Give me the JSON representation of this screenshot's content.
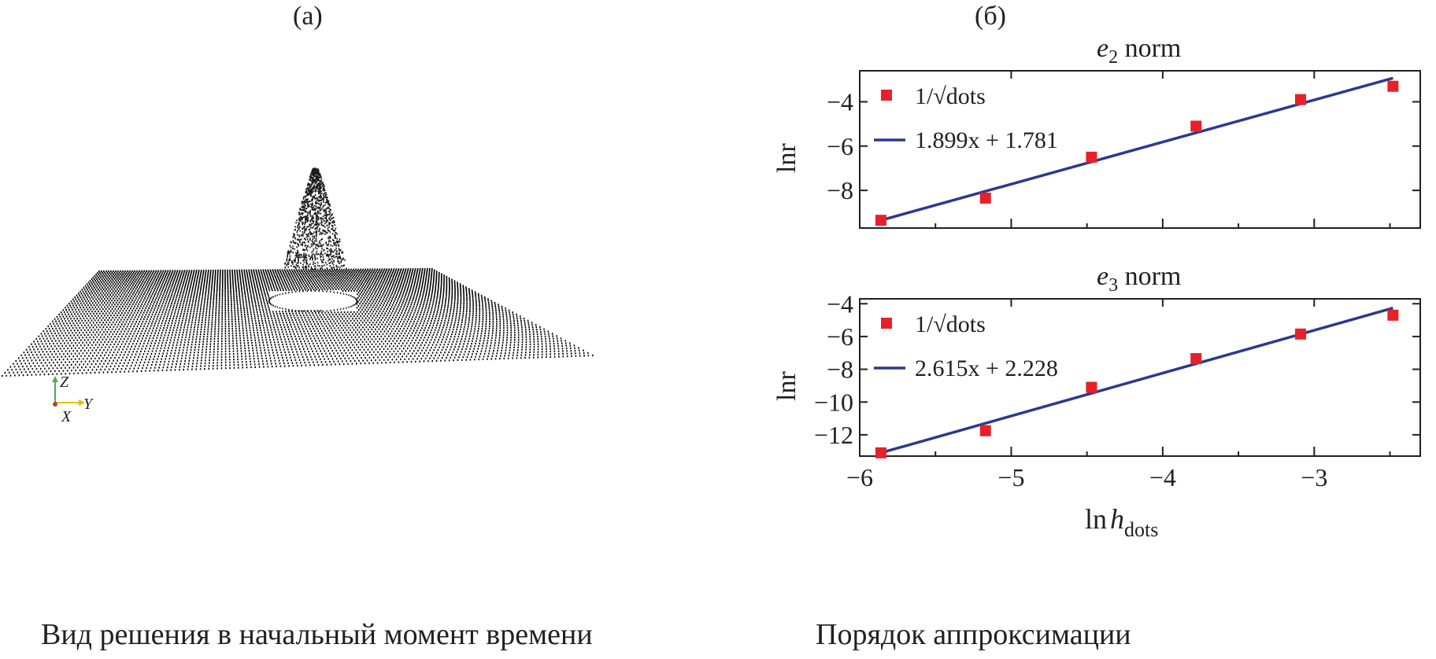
{
  "panel_a": {
    "label": "(а)",
    "caption": "Вид решения в начальный момент времени",
    "axes_triad": {
      "z": "Z",
      "y": "Y",
      "x": "X"
    }
  },
  "panel_b": {
    "label": "(б)",
    "caption": "Порядок аппроксимации"
  },
  "colors": {
    "points": "#e8202a",
    "fit_line": "#2b3990",
    "axes": "#231f20",
    "surface": "#000000"
  },
  "chart_data": [
    {
      "type": "scatter",
      "title": "e2 norm",
      "title_var": "e",
      "title_sub": "2",
      "title_rest": " norm",
      "ylabel": "ln r",
      "xlabel": "",
      "xlim": [
        -6.0,
        -2.3
      ],
      "ylim": [
        -9.7,
        -2.6
      ],
      "xticks": [
        -6,
        -5,
        -4,
        -3
      ],
      "yticks": [
        -8,
        -6,
        -4
      ],
      "ytick_labels": [
        "−8",
        "−6",
        "−4"
      ],
      "minor_xticks": [
        -5.5,
        -4.5,
        -3.5,
        -2.5
      ],
      "show_xtick_labels": false,
      "legend_position": "top-left",
      "series": [
        {
          "name": "1/√dots",
          "kind": "points",
          "x": [
            -5.86,
            -5.17,
            -4.47,
            -3.78,
            -3.09,
            -2.48
          ],
          "y": [
            -9.35,
            -8.35,
            -6.5,
            -5.1,
            -3.9,
            -3.3
          ]
        },
        {
          "name": "1.899x + 1.781",
          "kind": "line",
          "x": [
            -5.86,
            -2.48
          ],
          "y": [
            -9.35,
            -2.93
          ]
        }
      ]
    },
    {
      "type": "scatter",
      "title": "e3 norm",
      "title_var": "e",
      "title_sub": "3",
      "title_rest": " norm",
      "ylabel": "ln r",
      "xlabel": "ln h_dots",
      "xlim": [
        -6.0,
        -2.3
      ],
      "ylim": [
        -13.3,
        -3.7
      ],
      "xticks": [
        -6,
        -5,
        -4,
        -3
      ],
      "xtick_labels": [
        "−6",
        "−5",
        "−4",
        "−3"
      ],
      "yticks": [
        -12,
        -10,
        -8,
        -6,
        -4
      ],
      "ytick_labels": [
        "−12",
        "−10",
        "−8",
        "−6",
        "−4"
      ],
      "minor_xticks": [
        -5.5,
        -4.5,
        -3.5,
        -2.5
      ],
      "show_xtick_labels": true,
      "legend_position": "top-left",
      "series": [
        {
          "name": "1/√dots",
          "kind": "points",
          "x": [
            -5.86,
            -5.17,
            -4.47,
            -3.78,
            -3.09,
            -2.48
          ],
          "y": [
            -13.1,
            -11.75,
            -9.1,
            -7.35,
            -5.85,
            -4.7
          ]
        },
        {
          "name": "2.615x + 2.228",
          "kind": "line",
          "x": [
            -5.86,
            -2.48
          ],
          "y": [
            -13.1,
            -4.26
          ]
        }
      ]
    }
  ]
}
